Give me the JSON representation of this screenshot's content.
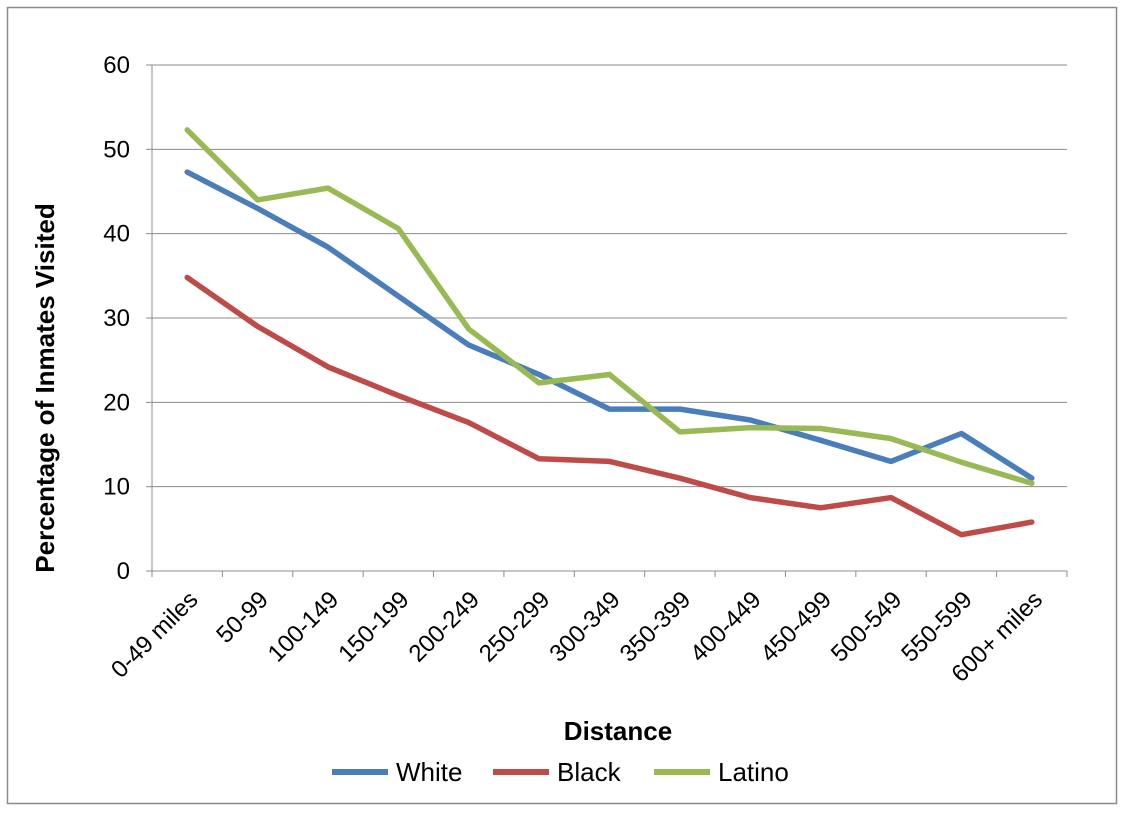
{
  "chart_data": {
    "type": "line",
    "title": "",
    "xlabel": "Distance",
    "ylabel": "Percentage of Inmates Visited",
    "ylim": [
      0,
      60
    ],
    "yticks": [
      0,
      10,
      20,
      30,
      40,
      50,
      60
    ],
    "grid": "horizontal",
    "legend_position": "bottom",
    "categories": [
      "0-49 miles",
      "50-99",
      "100-149",
      "150-199",
      "200-249",
      "250-299",
      "300-349",
      "350-399",
      "400-449",
      "450-499",
      "500-549",
      "550-599",
      "600+ miles"
    ],
    "series": [
      {
        "name": "White",
        "color": "#4a7ebb",
        "values": [
          47.3,
          43.0,
          38.4,
          32.6,
          26.8,
          23.3,
          19.2,
          19.2,
          17.9,
          15.5,
          13.0,
          16.3,
          11.0
        ]
      },
      {
        "name": "Black",
        "color": "#be4b48",
        "values": [
          34.8,
          29.0,
          24.2,
          20.8,
          17.6,
          13.3,
          13.0,
          11.0,
          8.7,
          7.5,
          8.7,
          4.3,
          5.8
        ]
      },
      {
        "name": "Latino",
        "color": "#98b954",
        "values": [
          52.3,
          44.0,
          45.4,
          40.6,
          28.7,
          22.3,
          23.3,
          16.5,
          17.0,
          16.9,
          15.7,
          12.9,
          10.4
        ]
      }
    ]
  }
}
